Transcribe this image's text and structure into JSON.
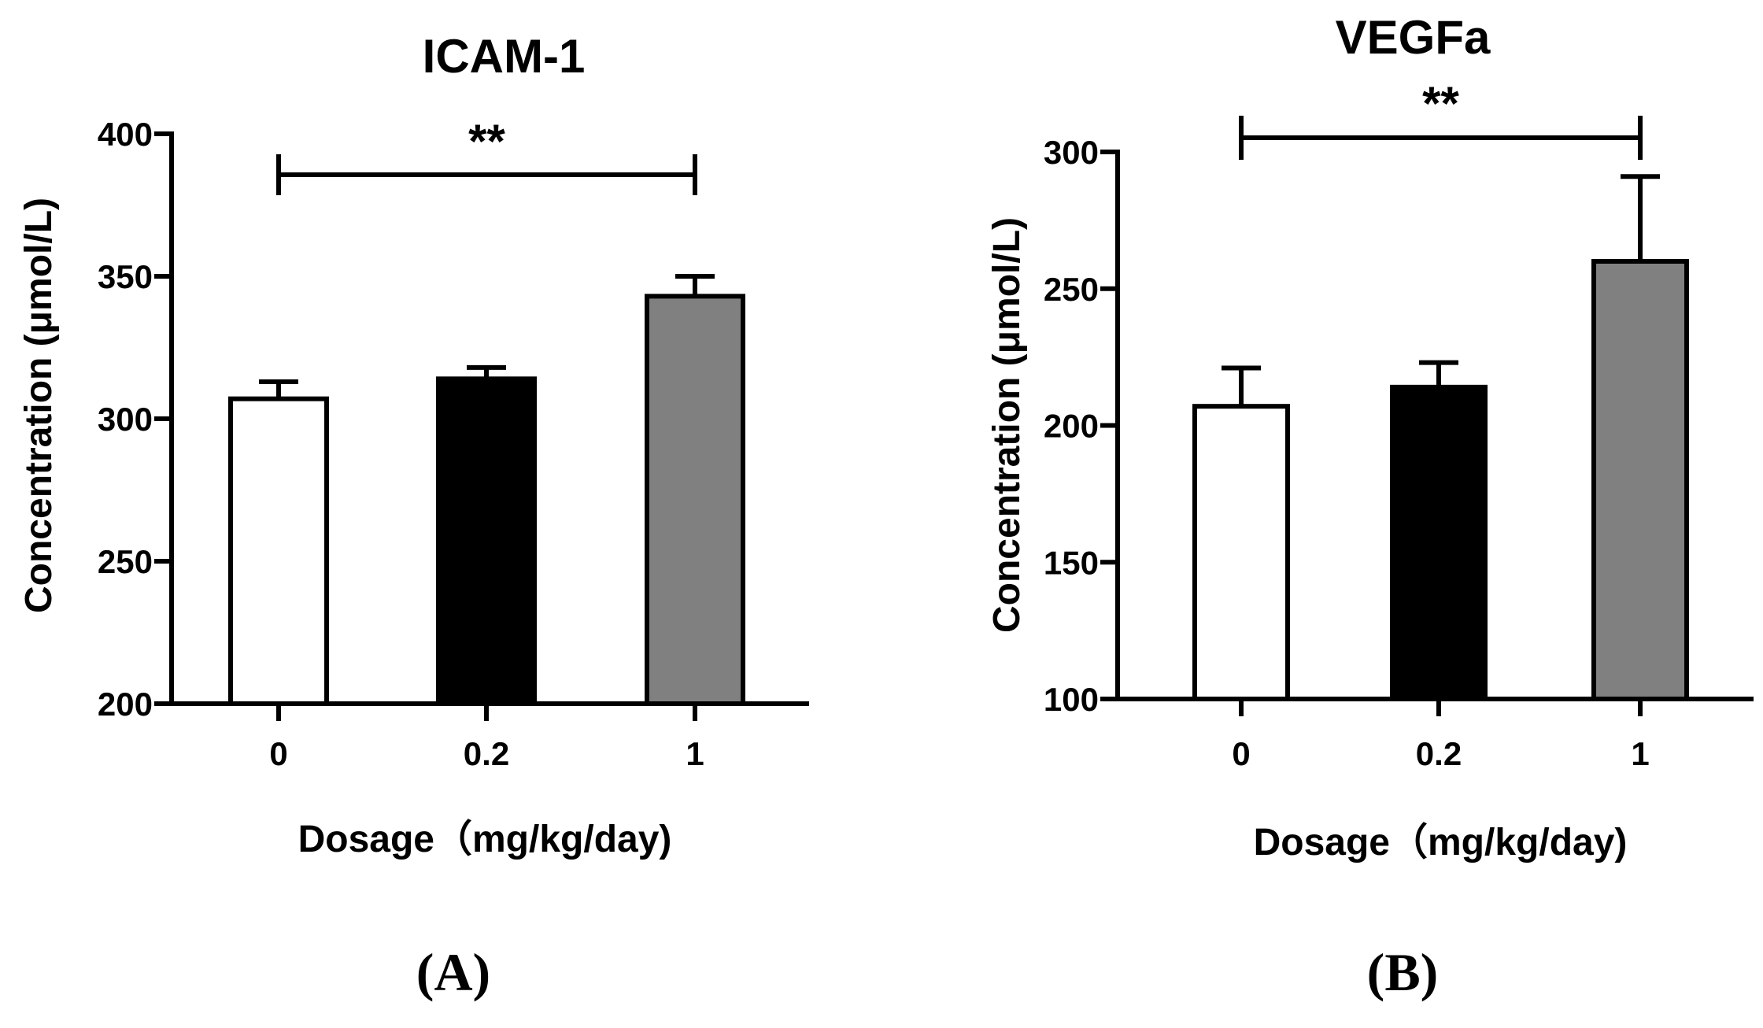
{
  "chart_data": [
    {
      "type": "bar",
      "panel_label": "(A)",
      "title": "ICAM-1",
      "xlabel": "Dosage（mg/kg/day)",
      "ylabel": "Concentration (μmol/L)",
      "ylim": [
        200,
        400
      ],
      "yticks": [
        "200",
        "250",
        "300",
        "350",
        "400"
      ],
      "categories": [
        "0",
        "0.2",
        "1"
      ],
      "values": [
        307,
        314,
        343
      ],
      "errors": [
        6,
        4,
        7
      ],
      "bar_fills": [
        "#ffffff",
        "#000000",
        "#808080"
      ],
      "significance": {
        "from": "0",
        "to": "1",
        "label": "**"
      },
      "grid": false
    },
    {
      "type": "bar",
      "panel_label": "(B)",
      "title": "VEGFa",
      "xlabel": "Dosage（mg/kg/day)",
      "ylabel": "Concentration (μmol/L)",
      "ylim": [
        100,
        300
      ],
      "yticks": [
        "100",
        "150",
        "200",
        "250",
        "300"
      ],
      "categories": [
        "0",
        "0.2",
        "1"
      ],
      "values": [
        207,
        214,
        260
      ],
      "errors": [
        14,
        9,
        31
      ],
      "bar_fills": [
        "#ffffff",
        "#000000",
        "#808080"
      ],
      "significance": {
        "from": "0",
        "to": "1",
        "label": "**"
      },
      "grid": false
    }
  ]
}
